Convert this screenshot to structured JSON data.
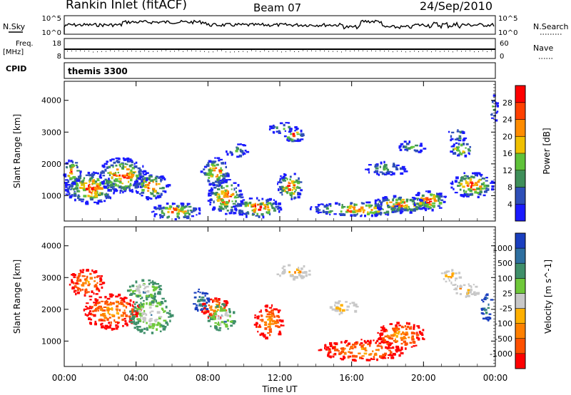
{
  "header": {
    "station": "Rankin Inlet (fitACF)",
    "beam": "Beam 07",
    "date": "24/Sep/2010"
  },
  "noise_panel": {
    "left_label": "N.Sky",
    "left_ticks": [
      "10^5",
      "10^0"
    ],
    "right_label": "N.Search",
    "right_ticks": [
      "10^5",
      "10^0"
    ]
  },
  "freq_panel": {
    "left_label_line1": "Freq.",
    "left_label_line2": "[MHz]",
    "left_ticks": [
      "18",
      "8"
    ],
    "right_label": "Nave",
    "right_ticks": [
      "60",
      "0"
    ]
  },
  "cpid_panel": {
    "label": "CPID",
    "value": "themis 3300"
  },
  "colors": {
    "power_scale": [
      "#1a1aff",
      "#2e4fb8",
      "#3f8f5a",
      "#5fc23a",
      "#f0c000",
      "#ff8c00",
      "#ff4000",
      "#ff0000"
    ],
    "velocity_scale": [
      "#1a3fbf",
      "#2e6fa0",
      "#3f8f6a",
      "#6fc83a",
      "#c8c8c8",
      "#ffb000",
      "#ff8000",
      "#ff5000",
      "#ff0000"
    ]
  },
  "chart_data": [
    {
      "type": "heatmap",
      "title": "",
      "xlabel": "Time UT",
      "ylabel": "Slant Range [km]",
      "x_ticks": [
        "00:00",
        "04:00",
        "08:00",
        "12:00",
        "16:00",
        "20:00",
        "00:00"
      ],
      "y_ticks": [
        "1000",
        "2000",
        "3000",
        "4000"
      ],
      "ylim": [
        200,
        4600
      ],
      "colorbar_label": "Power [dB]",
      "colorbar_ticks": [
        "4",
        "8",
        "12",
        "16",
        "20",
        "24",
        "28"
      ]
    },
    {
      "type": "heatmap",
      "title": "",
      "xlabel": "Time UT",
      "ylabel": "Slant Range [km]",
      "x_ticks": [
        "00:00",
        "04:00",
        "08:00",
        "12:00",
        "16:00",
        "20:00",
        "00:00"
      ],
      "y_ticks": [
        "1000",
        "2000",
        "3000",
        "4000"
      ],
      "ylim": [
        200,
        4600
      ],
      "colorbar_label": "Velocity [m s^-1]",
      "colorbar_ticks": [
        "1000",
        "500",
        "100",
        "25",
        "-25",
        "-100",
        "-500",
        "-1000"
      ]
    }
  ]
}
